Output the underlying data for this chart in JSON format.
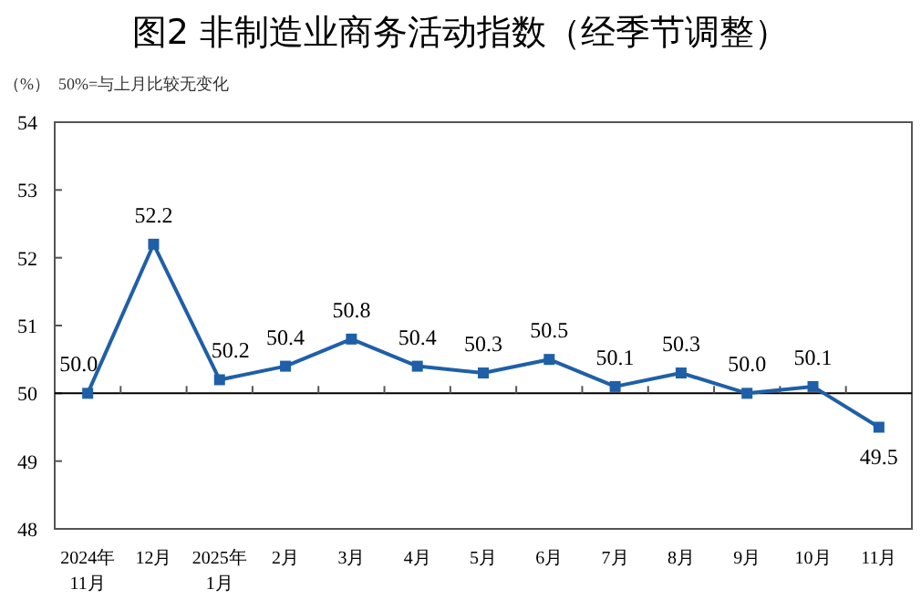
{
  "chart_data": {
    "type": "line",
    "title": "图2  非制造业商务活动指数（经季节调整）",
    "ylabel": "（%）",
    "annotations": [
      "50%=与上月比较无变化"
    ],
    "categories": [
      "2024年\n11月",
      "12月",
      "2025年\n1月",
      "2月",
      "3月",
      "4月",
      "5月",
      "6月",
      "7月",
      "8月",
      "9月",
      "10月",
      "11月"
    ],
    "series": [
      {
        "color": "#1f5fa8",
        "values": [
          50.0,
          52.2,
          50.2,
          50.4,
          50.8,
          50.4,
          50.3,
          50.5,
          50.1,
          50.3,
          50.0,
          50.1,
          49.5
        ],
        "value_labels": [
          "50.0",
          "52.2",
          "50.2",
          "50.4",
          "50.8",
          "50.4",
          "50.3",
          "50.5",
          "50.1",
          "50.3",
          "50.0",
          "50.1",
          "49.5"
        ]
      }
    ],
    "ylim": [
      48,
      54
    ],
    "yticks": [
      48,
      49,
      50,
      51,
      52,
      53,
      54
    ],
    "ref_lines": [
      {
        "axis": "y",
        "value": 50,
        "color": "#000000"
      }
    ],
    "marker": "square",
    "line_style": "solid",
    "grid": false
  }
}
